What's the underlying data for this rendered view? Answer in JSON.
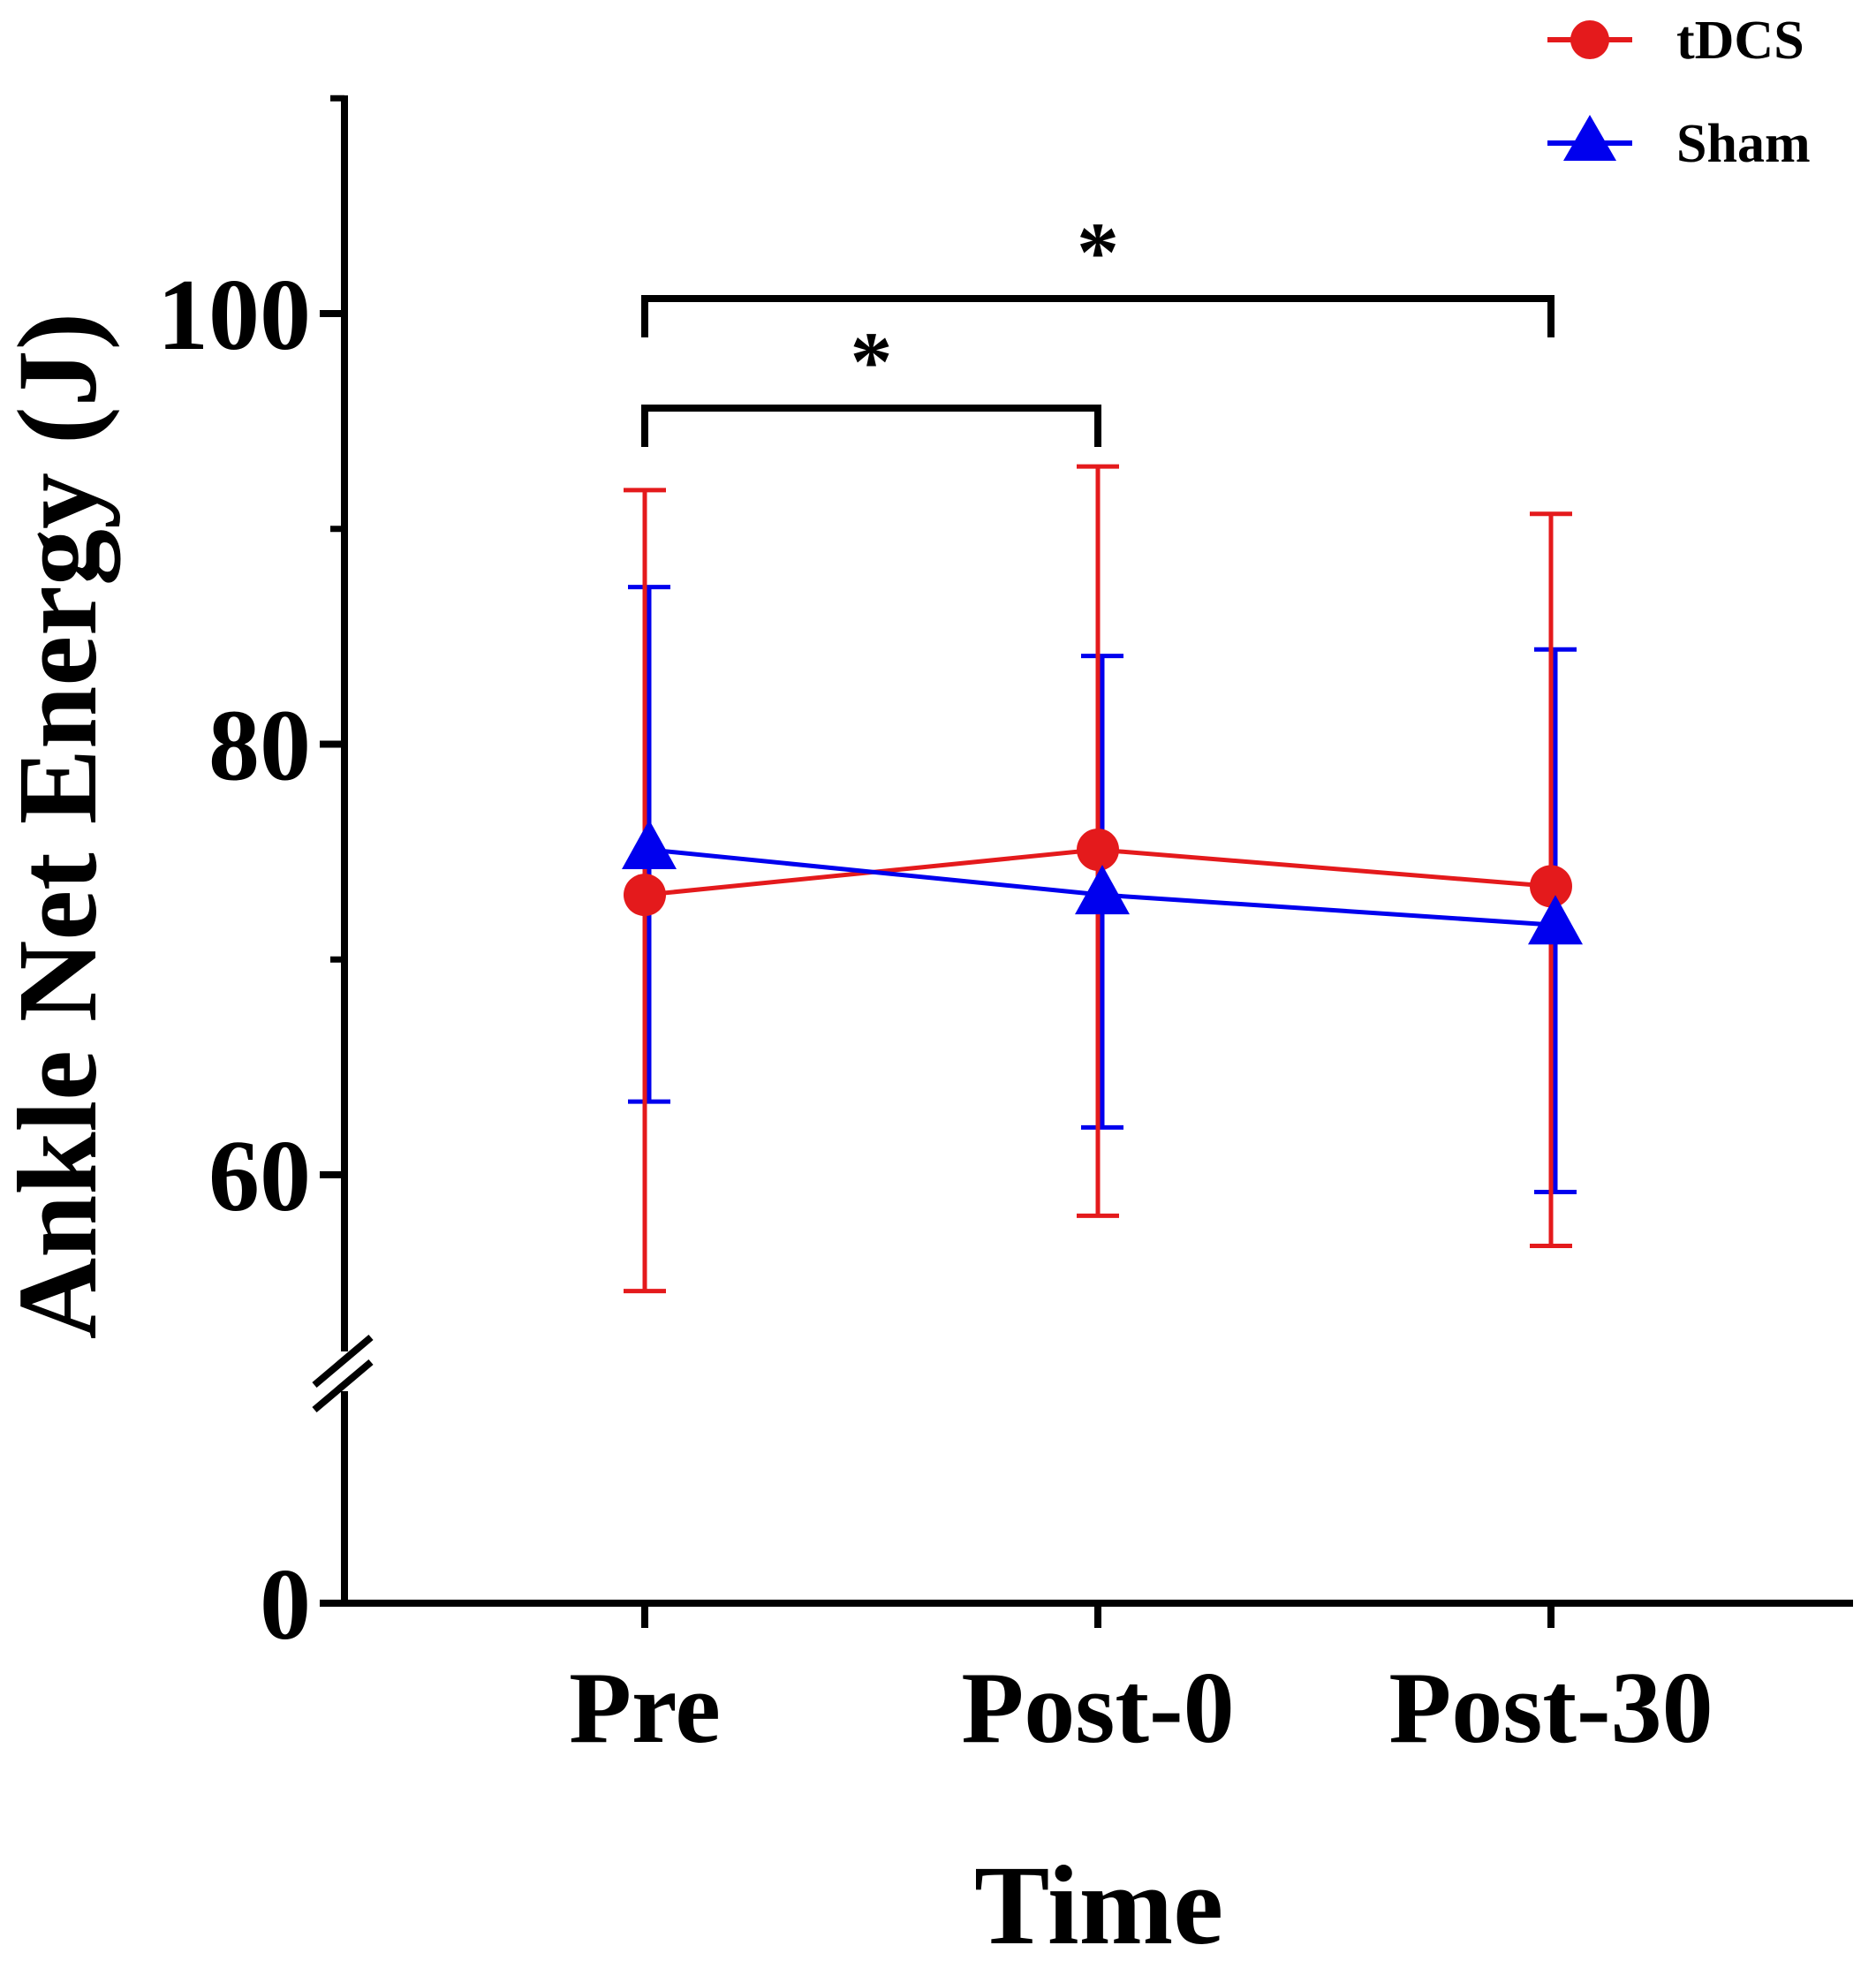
{
  "chart_data": {
    "type": "line",
    "title": "",
    "xlabel": "Time",
    "ylabel": "Ankle Net Energy (J)",
    "categories": [
      "Pre",
      "Post-0",
      "Post-30"
    ],
    "y_ticks": [
      0,
      60,
      80,
      100
    ],
    "y_broken_axis": true,
    "ylim_upper": [
      50,
      110
    ],
    "ylim_lower": [
      0,
      12
    ],
    "series": [
      {
        "name": "tDCS",
        "color": "#e41a1c",
        "marker": "circle",
        "values": [
          73.0,
          75.1,
          73.4
        ],
        "error_upper": [
          91.8,
          92.9,
          90.7
        ],
        "error_lower": [
          54.6,
          58.1,
          56.7
        ]
      },
      {
        "name": "Sham",
        "color": "#0000ee",
        "marker": "triangle",
        "values": [
          75.1,
          73.0,
          71.6
        ],
        "error_upper": [
          87.3,
          84.1,
          84.4
        ],
        "error_lower": [
          63.4,
          62.2,
          59.2
        ]
      }
    ],
    "legend": [
      "tDCS",
      "Sham"
    ],
    "legend_position": "top-right",
    "significance": [
      {
        "from": "Pre",
        "to": "Post-30",
        "label": "*"
      },
      {
        "from": "Pre",
        "to": "Post-0",
        "label": "*"
      }
    ]
  }
}
